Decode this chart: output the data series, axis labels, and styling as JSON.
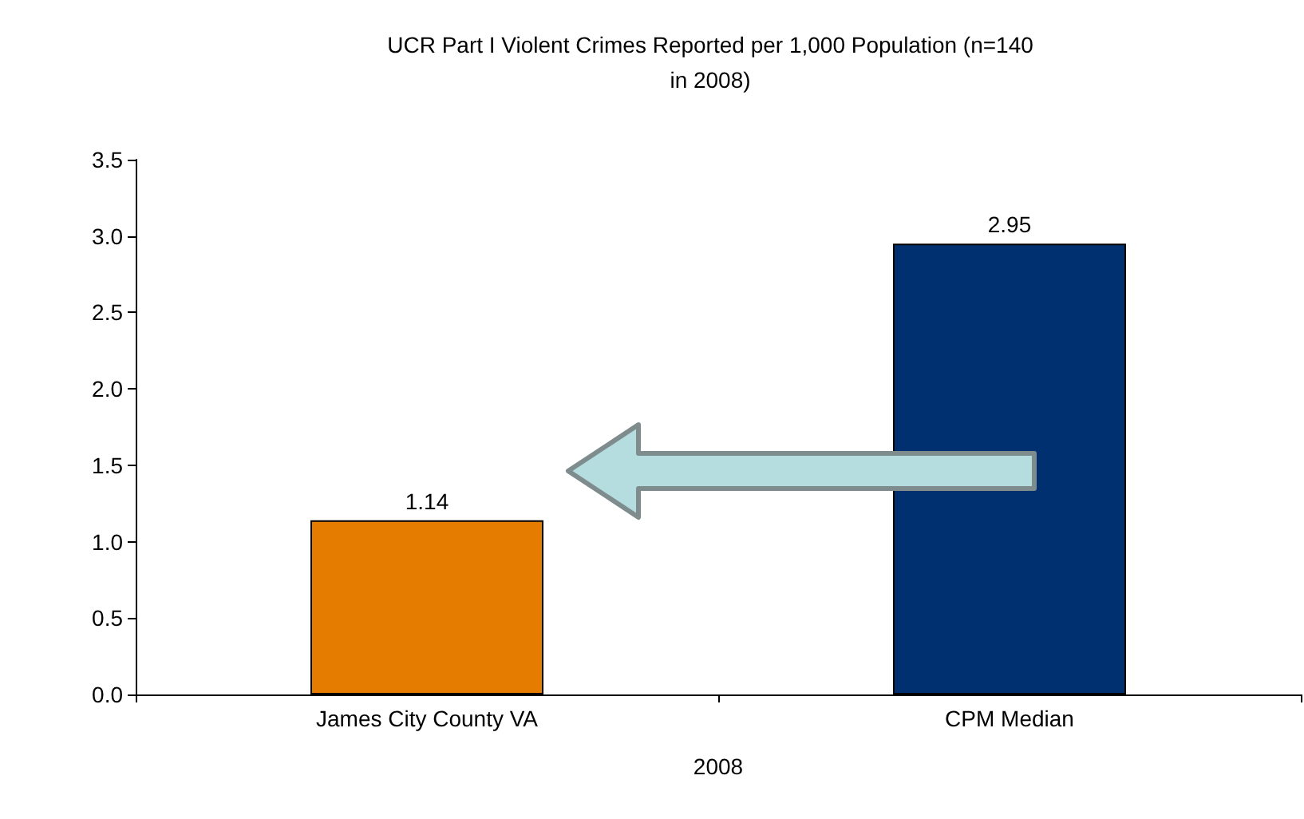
{
  "chart_data": {
    "type": "bar",
    "title": "UCR Part I Violent Crimes Reported per 1,000 Population (n=140\nin 2008)",
    "xlabel": "2008",
    "categories": [
      "James City County VA",
      "CPM Median"
    ],
    "values": [
      1.14,
      2.95
    ],
    "colors": [
      "#e57c00",
      "#003070"
    ],
    "data_labels": true,
    "ylim": [
      0,
      3.5
    ],
    "yticks": [
      {
        "value": 0,
        "label": "0.0"
      },
      {
        "value": 0.5,
        "label": "0.5"
      },
      {
        "value": 1,
        "label": "1.0"
      },
      {
        "value": 1.5,
        "label": "1.5"
      },
      {
        "value": 2,
        "label": "2.0"
      },
      {
        "value": 2.5,
        "label": "2.5"
      },
      {
        "value": 3,
        "label": "3.0"
      },
      {
        "value": 3.5,
        "label": "3.5"
      }
    ]
  }
}
